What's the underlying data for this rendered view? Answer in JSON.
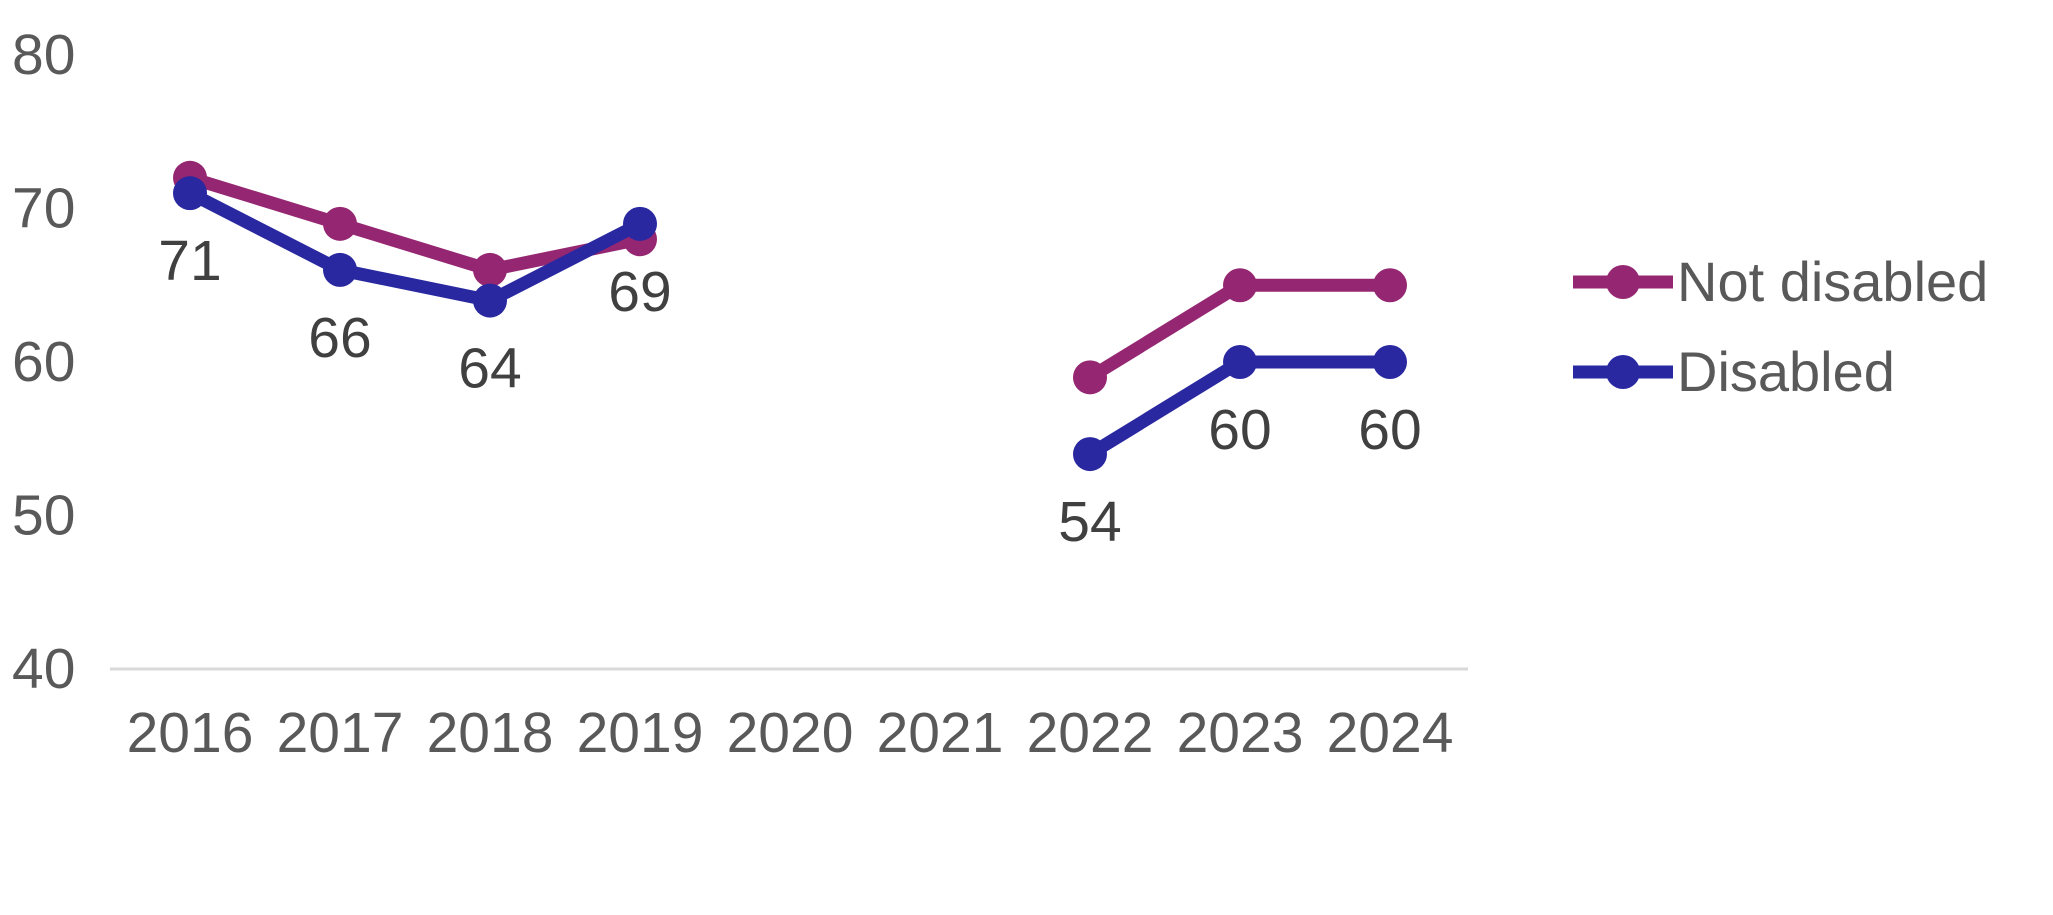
{
  "chart_data": {
    "type": "line",
    "title": "",
    "xlabel": "",
    "ylabel": "",
    "x": [
      "2016",
      "2017",
      "2018",
      "2019",
      "2020",
      "2021",
      "2022",
      "2023",
      "2024"
    ],
    "series": [
      {
        "name": "Not disabled",
        "color": "#952772",
        "values": [
          72,
          69,
          66,
          68,
          null,
          null,
          59,
          65,
          65
        ],
        "show_data_labels": false,
        "data_labels": [
          "",
          "",
          "",
          "",
          "",
          "",
          "",
          "",
          ""
        ]
      },
      {
        "name": "Disabled",
        "color": "#2928A0",
        "values": [
          71,
          66,
          64,
          69,
          null,
          null,
          54,
          60,
          60
        ],
        "show_data_labels": true,
        "data_labels": [
          "71",
          "66",
          "64",
          "69",
          "",
          "",
          "54",
          "60",
          "60"
        ]
      }
    ],
    "ylim": [
      40,
      80
    ],
    "yticks": [
      40,
      50,
      60,
      70,
      80
    ],
    "grid": "off",
    "legend_position": "right",
    "marker": "circle",
    "colors": {
      "axis_text": "#595959",
      "data_label_text": "#404040",
      "axis_line": "#D9D9D9",
      "background": "#FFFFFF"
    }
  }
}
